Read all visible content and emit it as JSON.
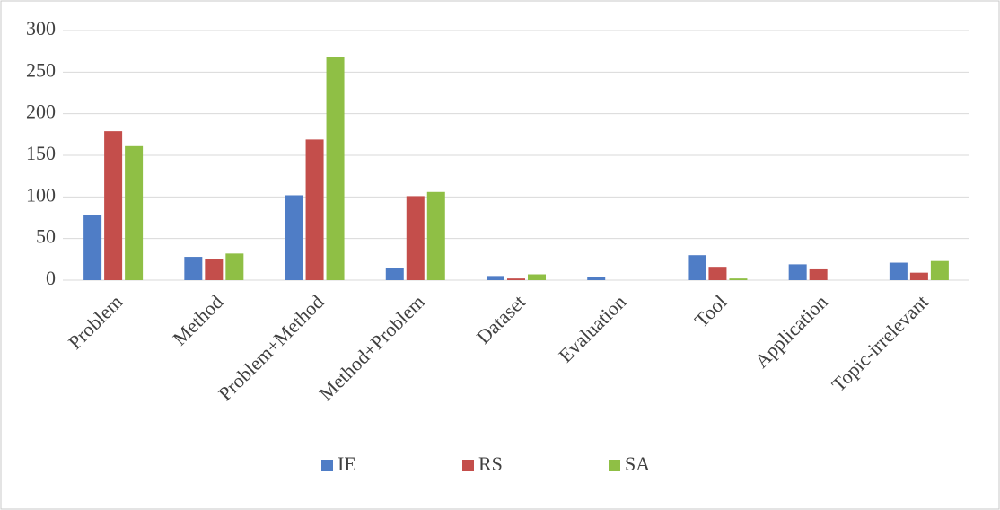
{
  "chart_data": {
    "type": "bar",
    "categories": [
      "Problem",
      "Method",
      "Problem+Method",
      "Method+Problem",
      "Dataset",
      "Evaluation",
      "Tool",
      "Application",
      "Topic-irrelevant"
    ],
    "series": [
      {
        "name": "IE",
        "color": "#4f7dc6",
        "values": [
          78,
          28,
          102,
          15,
          5,
          4,
          30,
          19,
          21
        ]
      },
      {
        "name": "RS",
        "color": "#c44e4b",
        "values": [
          179,
          25,
          169,
          101,
          2,
          0,
          16,
          13,
          9
        ]
      },
      {
        "name": "SA",
        "color": "#8fbf45",
        "values": [
          161,
          32,
          268,
          106,
          7,
          0,
          2,
          0,
          23
        ]
      }
    ],
    "ylim": [
      0,
      300
    ],
    "yticks": [
      0,
      50,
      100,
      150,
      200,
      250,
      300
    ],
    "grid": true,
    "legend": "bottom"
  }
}
